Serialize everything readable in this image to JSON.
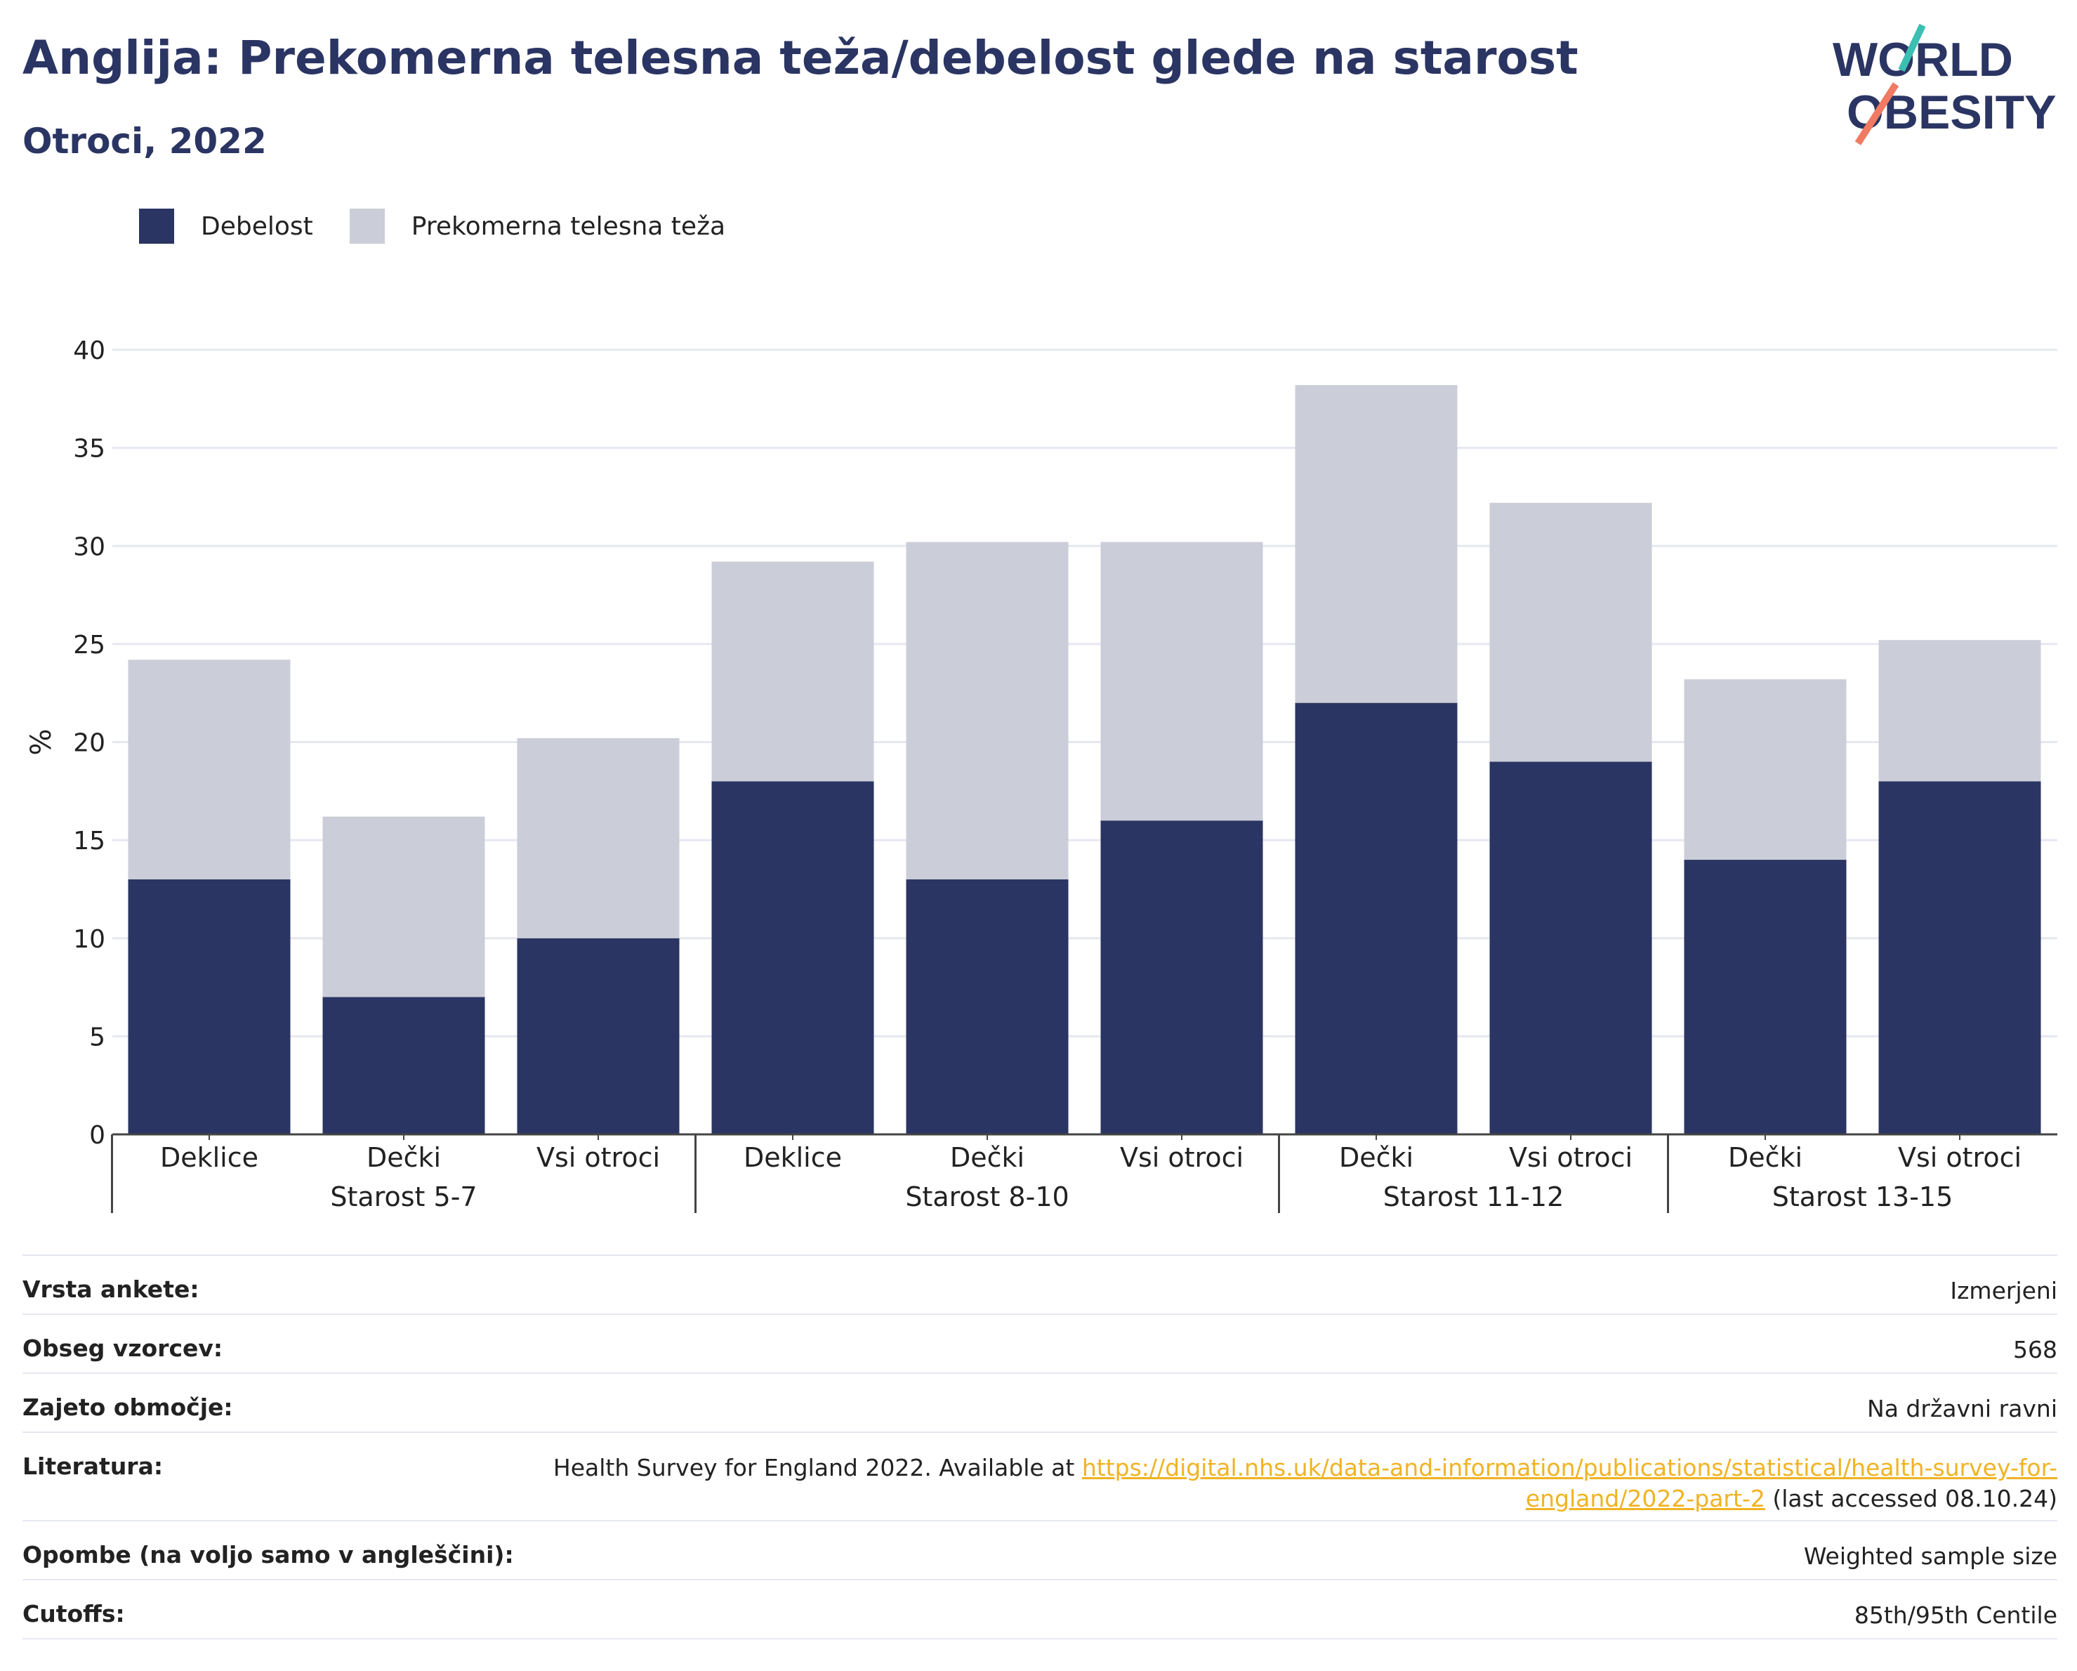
{
  "title": "Anglija: Prekomerna telesna teža/debelost glede na starost",
  "subtitle": "Otroci, 2022",
  "logo": {
    "line1": "WORLD",
    "line2": "OBESITY"
  },
  "legend": {
    "obesity_label": "Debelost",
    "overweight_label": "Prekomerna telesna teža",
    "obesity_color": "#2b3563",
    "overweight_color": "#cbcdd8"
  },
  "chart_data": {
    "type": "bar",
    "stacked": true,
    "ylabel": "%",
    "ylim": [
      0,
      40
    ],
    "yticks": [
      0,
      5,
      10,
      15,
      20,
      25,
      30,
      35,
      40
    ],
    "grid": true,
    "legend_position": "top-left",
    "groups": [
      {
        "label": "Starost 5-7",
        "categories": [
          "Deklice",
          "Dečki",
          "Vsi otroci"
        ]
      },
      {
        "label": "Starost 8-10",
        "categories": [
          "Deklice",
          "Dečki",
          "Vsi otroci"
        ]
      },
      {
        "label": "Starost 11-12",
        "categories": [
          "Dečki",
          "Vsi otroci"
        ]
      },
      {
        "label": "Starost 13-15",
        "categories": [
          "Dečki",
          "Vsi otroci"
        ]
      }
    ],
    "series": [
      {
        "name": "Debelost",
        "color": "#2b3563",
        "values": [
          13,
          7,
          10,
          18,
          13,
          16,
          22,
          19,
          14,
          18
        ]
      },
      {
        "name": "Prekomerna telesna teža",
        "color": "#cbcdd8",
        "values": [
          11.2,
          9.2,
          10.2,
          11.2,
          17.2,
          14.2,
          16.2,
          13.2,
          9.2,
          7.2
        ]
      }
    ]
  },
  "info": [
    {
      "key": "Vrsta ankete:",
      "value": "Izmerjeni"
    },
    {
      "key": "Obseg vzorcev:",
      "value": "568"
    },
    {
      "key": "Zajeto območje:",
      "value": "Na državni ravni"
    },
    {
      "key": "Literatura:",
      "value_pre": "Health Survey for England 2022. Available at ",
      "link_1": "https://digital.nhs.uk/data-and-information/publications/statistical/health-survey-for-",
      "link_2": "england/2022-part-2",
      "value_post": " (last accessed 08.10.24)"
    },
    {
      "key": "Opombe (na voljo samo v angleščini):",
      "value": "Weighted sample size"
    },
    {
      "key": "Cutoffs:",
      "value": "85th/95th Centile"
    }
  ]
}
